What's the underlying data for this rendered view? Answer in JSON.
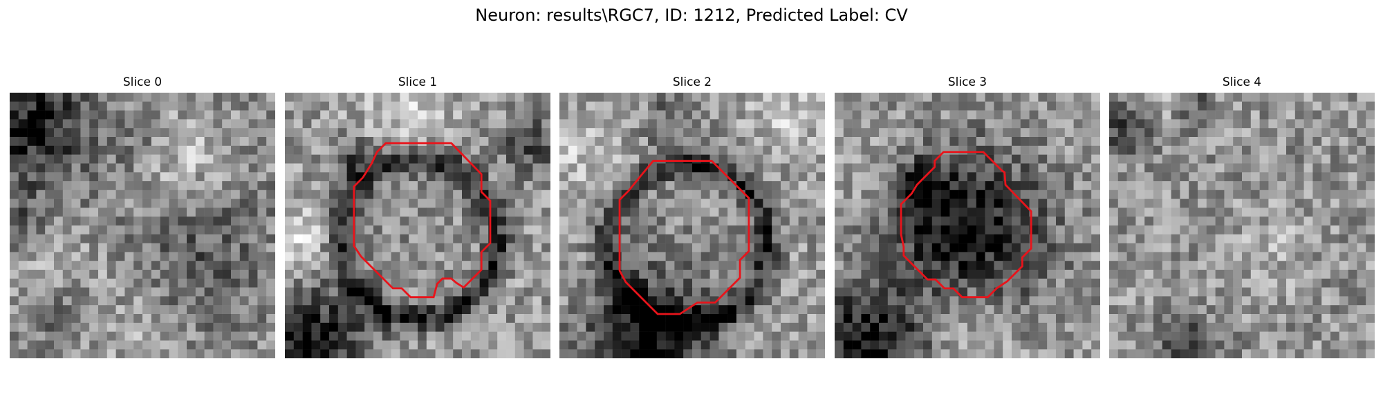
{
  "figure": {
    "title": "Neuron: results\\RGC7, ID: 1212, Predicted Label: CV",
    "outline_color": "#e8141b",
    "grid_size": 30
  },
  "panels": [
    {
      "label": "Slice 0",
      "has_outline": false,
      "seed": 11,
      "brightness": 0.56,
      "dark_blobs": [
        [
          0.08,
          0.12,
          0.16,
          0.45
        ],
        [
          0.04,
          0.52,
          0.1,
          0.25
        ],
        [
          0.18,
          0.82,
          0.1,
          0.28
        ],
        [
          0.7,
          0.62,
          0.18,
          0.22
        ],
        [
          0.5,
          0.2,
          0.08,
          0.18
        ]
      ],
      "light_blobs": [
        [
          0.62,
          0.25,
          0.12,
          0.22
        ],
        [
          0.12,
          0.68,
          0.14,
          0.2
        ],
        [
          0.45,
          0.9,
          0.16,
          0.12
        ]
      ],
      "ring": null
    },
    {
      "label": "Slice 1",
      "has_outline": true,
      "seed": 23,
      "brightness": 0.6,
      "dark_blobs": [
        [
          0.12,
          0.93,
          0.14,
          0.5
        ],
        [
          0.25,
          0.25,
          0.06,
          0.3
        ],
        [
          0.92,
          0.2,
          0.08,
          0.3
        ]
      ],
      "light_blobs": [
        [
          0.05,
          0.55,
          0.09,
          0.25
        ],
        [
          0.45,
          0.05,
          0.12,
          0.18
        ]
      ],
      "ring": [
        0.5,
        0.55,
        0.3,
        0.42,
        0.5
      ]
    },
    {
      "label": "Slice 2",
      "has_outline": true,
      "seed": 37,
      "brightness": 0.6,
      "dark_blobs": [
        [
          0.35,
          0.93,
          0.17,
          0.55
        ],
        [
          0.42,
          0.12,
          0.08,
          0.22
        ]
      ],
      "light_blobs": [
        [
          0.1,
          0.2,
          0.1,
          0.18
        ],
        [
          0.85,
          0.1,
          0.1,
          0.15
        ]
      ],
      "ring": [
        0.48,
        0.57,
        0.3,
        0.42,
        0.5
      ]
    },
    {
      "label": "Slice 3",
      "has_outline": true,
      "seed": 53,
      "brightness": 0.62,
      "dark_blobs": [
        [
          0.5,
          0.52,
          0.23,
          0.55
        ],
        [
          0.12,
          0.95,
          0.15,
          0.55
        ],
        [
          0.33,
          0.35,
          0.07,
          0.3
        ]
      ],
      "light_blobs": [
        [
          0.5,
          0.85,
          0.12,
          0.18
        ],
        [
          0.15,
          0.3,
          0.1,
          0.12
        ]
      ],
      "ring": null
    },
    {
      "label": "Slice 4",
      "has_outline": false,
      "seed": 71,
      "brightness": 0.58,
      "dark_blobs": [
        [
          0.05,
          0.15,
          0.07,
          0.3
        ],
        [
          0.3,
          0.05,
          0.06,
          0.25
        ],
        [
          0.3,
          0.97,
          0.08,
          0.35
        ]
      ],
      "light_blobs": [
        [
          0.22,
          0.05,
          0.05,
          0.2
        ],
        [
          0.6,
          0.6,
          0.1,
          0.12
        ]
      ],
      "ring": null
    }
  ]
}
